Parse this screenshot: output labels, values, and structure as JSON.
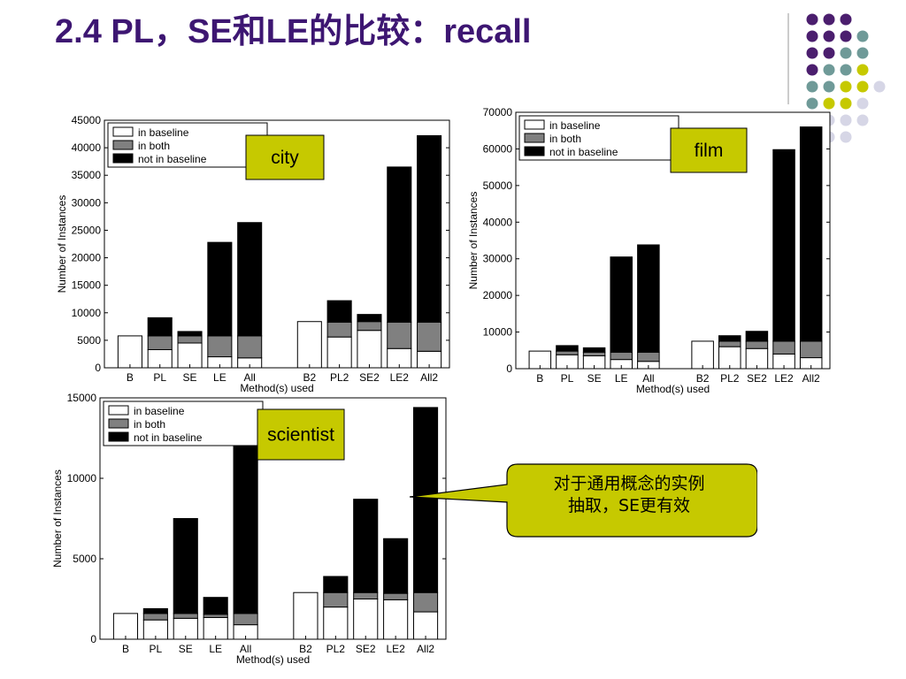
{
  "slide": {
    "title": "2.4 PL，SE和LE的比较：recall",
    "callout_text": "对于通用概念的实例\n抽取，SE更有效"
  },
  "colors": {
    "title": "#3d1672",
    "callout_fill": "#c6c900",
    "tag_fill": "#c6c900",
    "in_baseline": "#ffffff",
    "in_both": "#808080",
    "not_in_baseline": "#000000",
    "deco_purple": "#4b1e6e",
    "deco_teal": "#6f9a98",
    "deco_yellow": "#c6c900",
    "deco_lavender": "#d6d6e6"
  },
  "chart_data": [
    {
      "type": "bar",
      "stacked": true,
      "tag": "city",
      "xlabel": "Method(s) used",
      "ylabel": "Number of Instances",
      "ylim": [
        0,
        45000
      ],
      "yticks": [
        0,
        5000,
        10000,
        15000,
        20000,
        25000,
        30000,
        35000,
        40000,
        45000
      ],
      "legend": [
        "in baseline",
        "in both",
        "not in baseline"
      ],
      "legend_position": "top-left",
      "categories": [
        "B",
        "PL",
        "SE",
        "LE",
        "All",
        "B2",
        "PL2",
        "SE2",
        "LE2",
        "All2"
      ],
      "series": [
        {
          "name": "in baseline",
          "values": [
            5800,
            3300,
            4500,
            2000,
            1800,
            8400,
            5600,
            6800,
            3500,
            3000
          ]
        },
        {
          "name": "in both",
          "values": [
            0,
            2500,
            1300,
            3800,
            4000,
            0,
            2700,
            1600,
            4800,
            5300
          ]
        },
        {
          "name": "not in baseline",
          "values": [
            0,
            3300,
            800,
            17000,
            20600,
            0,
            3900,
            1300,
            28200,
            33900
          ]
        }
      ]
    },
    {
      "type": "bar",
      "stacked": true,
      "tag": "film",
      "xlabel": "Method(s) used",
      "ylabel": "Number of Instances",
      "ylim": [
        0,
        70000
      ],
      "yticks": [
        0,
        10000,
        20000,
        30000,
        40000,
        50000,
        60000,
        70000
      ],
      "legend": [
        "in baseline",
        "in both",
        "not in baseline"
      ],
      "legend_position": "top-left",
      "categories": [
        "B",
        "PL",
        "SE",
        "LE",
        "All",
        "B2",
        "PL2",
        "SE2",
        "LE2",
        "All2"
      ],
      "series": [
        {
          "name": "in baseline",
          "values": [
            4800,
            3800,
            3500,
            2500,
            2000,
            7500,
            6000,
            5500,
            4000,
            3000
          ]
        },
        {
          "name": "in both",
          "values": [
            0,
            1000,
            1000,
            2000,
            2500,
            0,
            1500,
            2000,
            3500,
            4500
          ]
        },
        {
          "name": "not in baseline",
          "values": [
            0,
            1500,
            1200,
            26000,
            29300,
            0,
            1500,
            2700,
            52300,
            58500
          ]
        }
      ]
    },
    {
      "type": "bar",
      "stacked": true,
      "tag": "scientist",
      "xlabel": "Method(s) used",
      "ylabel": "Number of Instances",
      "ylim": [
        0,
        15000
      ],
      "yticks": [
        0,
        5000,
        10000,
        15000
      ],
      "legend": [
        "in baseline",
        "in both",
        "not in baseline"
      ],
      "legend_position": "top-left",
      "categories": [
        "B",
        "PL",
        "SE",
        "LE",
        "All",
        "B2",
        "PL2",
        "SE2",
        "LE2",
        "All2"
      ],
      "series": [
        {
          "name": "in baseline",
          "values": [
            1600,
            1200,
            1300,
            1350,
            900,
            2900,
            2000,
            2500,
            2450,
            1700
          ]
        },
        {
          "name": "in both",
          "values": [
            0,
            400,
            300,
            200,
            700,
            0,
            900,
            400,
            400,
            1200
          ]
        },
        {
          "name": "not in baseline",
          "values": [
            0,
            300,
            5900,
            1050,
            10500,
            0,
            1000,
            5800,
            3400,
            11500
          ]
        }
      ]
    }
  ]
}
